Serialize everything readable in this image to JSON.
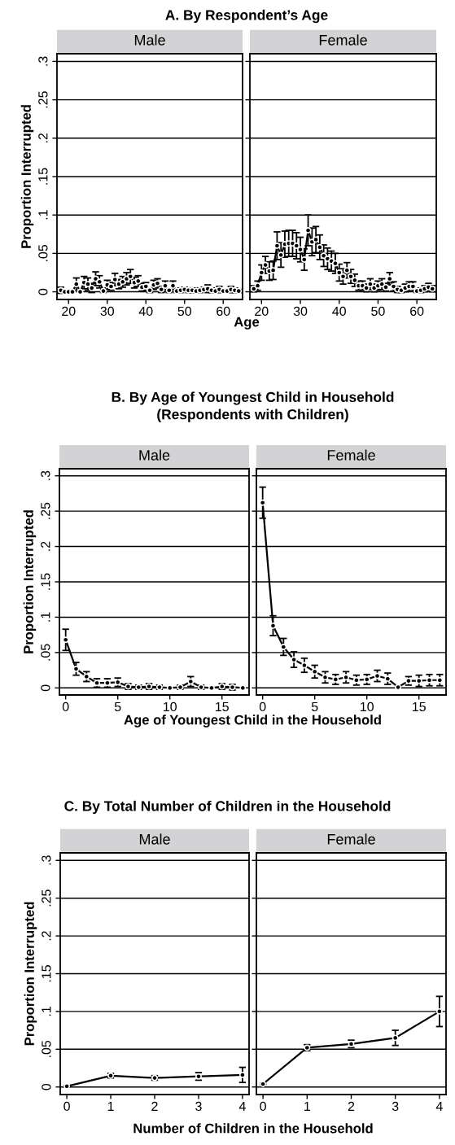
{
  "chart_data": [
    {
      "type": "line",
      "title": "Male",
      "annotations": [
        "A. By Respondent’s Age"
      ],
      "xlabel": "Age",
      "ylabel": "Proportion Interrupted",
      "marker": "circle",
      "line_style": "solid",
      "grid": "y",
      "legend": false,
      "xlim": [
        17,
        65
      ],
      "xticks": [
        20,
        30,
        40,
        50,
        60
      ],
      "ylim": [
        -0.01,
        0.31
      ],
      "yticks": [
        {
          "value": 0,
          "label": "0"
        },
        {
          "value": 0.05,
          "label": ".05"
        },
        {
          "value": 0.1,
          "label": ".1"
        },
        {
          "value": 0.15,
          "label": ".15"
        },
        {
          "value": 0.2,
          "label": ".2"
        },
        {
          "value": 0.25,
          "label": ".25"
        },
        {
          "value": 0.3,
          "label": ".3"
        }
      ],
      "x": [
        18,
        19,
        20,
        21,
        22,
        23,
        24,
        25,
        26,
        27,
        28,
        29,
        30,
        31,
        32,
        33,
        34,
        35,
        36,
        37,
        38,
        39,
        40,
        41,
        42,
        43,
        44,
        45,
        46,
        47,
        48,
        49,
        50,
        51,
        52,
        53,
        54,
        55,
        56,
        57,
        58,
        59,
        60,
        61,
        62,
        63,
        64
      ],
      "series": [
        {
          "color": "#000000",
          "values": [
            0.002,
            0,
            0,
            0,
            0.01,
            0,
            0.012,
            0.01,
            0.005,
            0.017,
            0.013,
            0.001,
            0.009,
            0.007,
            0.016,
            0.01,
            0.013,
            0.017,
            0.02,
            0.012,
            0.014,
            0.006,
            0.007,
            0.002,
            0.009,
            0.011,
            0.003,
            0.008,
            0.002,
            0.008,
            0.001,
            0.002,
            0.003,
            0.002,
            0.002,
            0.001,
            0.002,
            0.003,
            0.004,
            0.002,
            0.001,
            0.003,
            0.001,
            0.001,
            0.003,
            0.002,
            0.001
          ],
          "errors": [
            0.004,
            null,
            null,
            null,
            0.008,
            null,
            0.008,
            0.008,
            0.006,
            0.009,
            0.008,
            0.002,
            0.006,
            0.005,
            0.008,
            0.006,
            0.007,
            0.008,
            0.009,
            0.007,
            0.007,
            0.005,
            0.005,
            0.003,
            0.006,
            0.006,
            0.004,
            0.006,
            0.003,
            0.006,
            0.002,
            0.003,
            0.003,
            0.003,
            0.003,
            0.002,
            0.003,
            0.003,
            0.005,
            0.003,
            0.002,
            0.004,
            0.002,
            0.002,
            0.004,
            0.003,
            0.002
          ]
        }
      ]
    },
    {
      "type": "line",
      "title": "Female",
      "marker": "circle",
      "line_style": "solid",
      "grid": "y",
      "legend": false,
      "tick_labels": "x",
      "xlim": [
        17,
        65
      ],
      "xticks": [
        20,
        30,
        40,
        50,
        60
      ],
      "ylim": [
        -0.01,
        0.31
      ],
      "yticks": [
        0,
        0.05,
        0.1,
        0.15,
        0.2,
        0.25,
        0.3
      ],
      "x": [
        18,
        19,
        20,
        21,
        22,
        23,
        24,
        25,
        26,
        27,
        28,
        29,
        30,
        31,
        32,
        33,
        34,
        35,
        36,
        37,
        38,
        39,
        40,
        41,
        42,
        43,
        44,
        45,
        46,
        47,
        48,
        49,
        50,
        51,
        52,
        53,
        54,
        55,
        56,
        57,
        58,
        59,
        60,
        61,
        62,
        63,
        64
      ],
      "series": [
        {
          "color": "#000000",
          "values": [
            0.004,
            0.008,
            0.025,
            0.035,
            0.027,
            0.028,
            0.06,
            0.048,
            0.062,
            0.063,
            0.063,
            0.06,
            0.055,
            0.042,
            0.08,
            0.065,
            0.068,
            0.058,
            0.047,
            0.043,
            0.04,
            0.037,
            0.025,
            0.02,
            0.028,
            0.02,
            0.015,
            0.008,
            0.008,
            0.005,
            0.01,
            0.005,
            0.008,
            0.01,
            0.006,
            0.017,
            0.007,
            0.003,
            0.002,
            0.005,
            0.007,
            0.007,
            0.001,
            0.002,
            0.004,
            0.006,
            0.004
          ],
          "errors": [
            0.004,
            0.006,
            0.01,
            0.011,
            0.012,
            0.012,
            0.018,
            0.016,
            0.017,
            0.017,
            0.017,
            0.017,
            0.016,
            0.014,
            0.02,
            0.018,
            0.017,
            0.016,
            0.014,
            0.014,
            0.013,
            0.013,
            0.011,
            0.01,
            0.01,
            0.009,
            0.008,
            0.006,
            0.006,
            0.005,
            0.007,
            0.005,
            0.006,
            0.007,
            0.005,
            0.008,
            0.006,
            0.004,
            0.003,
            0.005,
            0.006,
            0.006,
            0.002,
            0.003,
            0.004,
            0.005,
            0.004
          ]
        }
      ]
    },
    {
      "type": "line",
      "title": "Male",
      "annotations": [
        "B. By Age of Youngest Child in Household\n(Respondents with Children)"
      ],
      "xlabel": "Age of Youngest Child in the Household",
      "ylabel": "Proportion Interrupted",
      "marker": "circle",
      "line_style": "solid",
      "grid": "y",
      "legend": false,
      "xlim": [
        -0.6,
        17.6
      ],
      "xticks": [
        0,
        5,
        10,
        15
      ],
      "ylim": [
        -0.01,
        0.31
      ],
      "yticks": [
        {
          "value": 0,
          "label": "0"
        },
        {
          "value": 0.05,
          "label": ".05"
        },
        {
          "value": 0.1,
          "label": ".1"
        },
        {
          "value": 0.15,
          "label": ".15"
        },
        {
          "value": 0.2,
          "label": ".2"
        },
        {
          "value": 0.25,
          "label": ".25"
        },
        {
          "value": 0.3,
          "label": ".3"
        }
      ],
      "x": [
        0,
        1,
        2,
        3,
        4,
        5,
        6,
        7,
        8,
        9,
        10,
        11,
        12,
        13,
        14,
        15,
        16,
        17
      ],
      "series": [
        {
          "color": "#000000",
          "values": [
            0.068,
            0.027,
            0.016,
            0.007,
            0.007,
            0.008,
            0.002,
            0.001,
            0.002,
            0.001,
            0,
            0.001,
            0.009,
            0.001,
            0,
            0.002,
            0.001,
            0
          ],
          "errors": [
            0.015,
            0.009,
            0.007,
            0.006,
            0.006,
            0.006,
            0.004,
            0.003,
            0.004,
            0.003,
            null,
            0.003,
            0.007,
            0.003,
            null,
            0.004,
            0.004,
            null
          ]
        }
      ]
    },
    {
      "type": "line",
      "title": "Female",
      "marker": "circle",
      "line_style": "solid",
      "grid": "y",
      "legend": false,
      "tick_labels": "x",
      "xlim": [
        -0.6,
        17.6
      ],
      "xticks": [
        0,
        5,
        10,
        15
      ],
      "ylim": [
        -0.01,
        0.31
      ],
      "yticks": [
        0,
        0.05,
        0.1,
        0.15,
        0.2,
        0.25,
        0.3
      ],
      "x": [
        0,
        1,
        2,
        3,
        4,
        5,
        6,
        7,
        8,
        9,
        10,
        11,
        12,
        13,
        14,
        15,
        16,
        17
      ],
      "series": [
        {
          "color": "#000000",
          "values": [
            0.262,
            0.088,
            0.058,
            0.04,
            0.032,
            0.023,
            0.015,
            0.012,
            0.015,
            0.011,
            0.012,
            0.017,
            0.013,
            0.001,
            0.01,
            0.01,
            0.011,
            0.011
          ],
          "errors": [
            0.022,
            0.014,
            0.012,
            0.011,
            0.01,
            0.009,
            0.008,
            0.007,
            0.008,
            0.007,
            0.007,
            0.008,
            0.008,
            null,
            0.006,
            0.008,
            0.008,
            0.008
          ]
        }
      ]
    },
    {
      "type": "line",
      "title": "Male",
      "annotations": [
        "C. By Total Number of Children in the Household"
      ],
      "xlabel": "Number of Children in the Household",
      "ylabel": "Proportion Interrupted",
      "marker": "circle",
      "line_style": "solid",
      "grid": "y",
      "legend": false,
      "xlim": [
        -0.15,
        4.15
      ],
      "xticks": [
        0,
        1,
        2,
        3,
        4
      ],
      "ylim": [
        -0.01,
        0.31
      ],
      "yticks": [
        {
          "value": 0,
          "label": "0"
        },
        {
          "value": 0.05,
          "label": ".05"
        },
        {
          "value": 0.1,
          "label": ".1"
        },
        {
          "value": 0.15,
          "label": ".15"
        },
        {
          "value": 0.2,
          "label": ".2"
        },
        {
          "value": 0.25,
          "label": ".25"
        },
        {
          "value": 0.3,
          "label": ".3"
        }
      ],
      "x": [
        0,
        1,
        2,
        3,
        4
      ],
      "series": [
        {
          "color": "#000000",
          "values": [
            0.001,
            0.015,
            0.012,
            0.014,
            0.016
          ],
          "errors": [
            0.001,
            0.003,
            0.003,
            0.005,
            0.01
          ]
        }
      ]
    },
    {
      "type": "line",
      "title": "Female",
      "marker": "circle",
      "line_style": "solid",
      "grid": "y",
      "legend": false,
      "tick_labels": "x",
      "xlim": [
        -0.15,
        4.15
      ],
      "xticks": [
        0,
        1,
        2,
        3,
        4
      ],
      "ylim": [
        -0.01,
        0.31
      ],
      "yticks": [
        0,
        0.05,
        0.1,
        0.15,
        0.2,
        0.25,
        0.3
      ],
      "x": [
        0,
        1,
        2,
        3,
        4
      ],
      "series": [
        {
          "color": "#000000",
          "values": [
            0.004,
            0.052,
            0.057,
            0.065,
            0.1
          ],
          "errors": [
            0.001,
            0.004,
            0.005,
            0.01,
            0.02
          ]
        }
      ]
    }
  ]
}
